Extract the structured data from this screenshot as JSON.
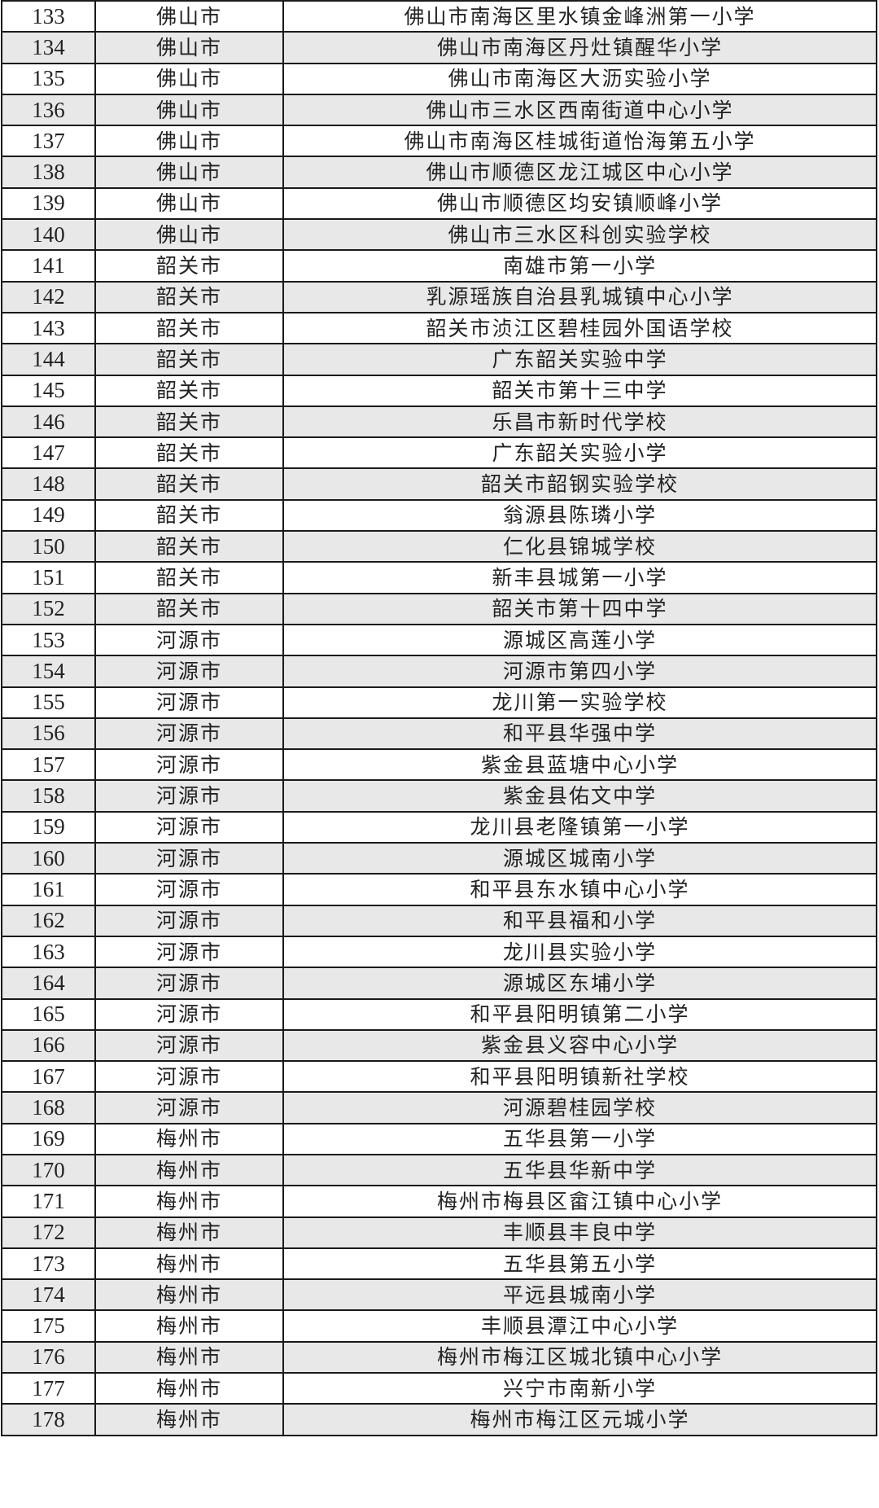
{
  "rows": [
    {
      "no": "133",
      "city": "佛山市",
      "school": "佛山市南海区里水镇金峰洲第一小学"
    },
    {
      "no": "134",
      "city": "佛山市",
      "school": "佛山市南海区丹灶镇醒华小学"
    },
    {
      "no": "135",
      "city": "佛山市",
      "school": "佛山市南海区大沥实验小学"
    },
    {
      "no": "136",
      "city": "佛山市",
      "school": "佛山市三水区西南街道中心小学"
    },
    {
      "no": "137",
      "city": "佛山市",
      "school": "佛山市南海区桂城街道怡海第五小学"
    },
    {
      "no": "138",
      "city": "佛山市",
      "school": "佛山市顺德区龙江城区中心小学"
    },
    {
      "no": "139",
      "city": "佛山市",
      "school": "佛山市顺德区均安镇顺峰小学"
    },
    {
      "no": "140",
      "city": "佛山市",
      "school": "佛山市三水区科创实验学校"
    },
    {
      "no": "141",
      "city": "韶关市",
      "school": "南雄市第一小学"
    },
    {
      "no": "142",
      "city": "韶关市",
      "school": "乳源瑶族自治县乳城镇中心小学"
    },
    {
      "no": "143",
      "city": "韶关市",
      "school": "韶关市浈江区碧桂园外国语学校"
    },
    {
      "no": "144",
      "city": "韶关市",
      "school": "广东韶关实验中学"
    },
    {
      "no": "145",
      "city": "韶关市",
      "school": "韶关市第十三中学"
    },
    {
      "no": "146",
      "city": "韶关市",
      "school": "乐昌市新时代学校"
    },
    {
      "no": "147",
      "city": "韶关市",
      "school": "广东韶关实验小学"
    },
    {
      "no": "148",
      "city": "韶关市",
      "school": "韶关市韶钢实验学校"
    },
    {
      "no": "149",
      "city": "韶关市",
      "school": "翁源县陈璘小学"
    },
    {
      "no": "150",
      "city": "韶关市",
      "school": "仁化县锦城学校"
    },
    {
      "no": "151",
      "city": "韶关市",
      "school": "新丰县城第一小学"
    },
    {
      "no": "152",
      "city": "韶关市",
      "school": "韶关市第十四中学"
    },
    {
      "no": "153",
      "city": "河源市",
      "school": "源城区高莲小学"
    },
    {
      "no": "154",
      "city": "河源市",
      "school": "河源市第四小学"
    },
    {
      "no": "155",
      "city": "河源市",
      "school": "龙川第一实验学校"
    },
    {
      "no": "156",
      "city": "河源市",
      "school": "和平县华强中学"
    },
    {
      "no": "157",
      "city": "河源市",
      "school": "紫金县蓝塘中心小学"
    },
    {
      "no": "158",
      "city": "河源市",
      "school": "紫金县佑文中学"
    },
    {
      "no": "159",
      "city": "河源市",
      "school": "龙川县老隆镇第一小学"
    },
    {
      "no": "160",
      "city": "河源市",
      "school": "源城区城南小学"
    },
    {
      "no": "161",
      "city": "河源市",
      "school": "和平县东水镇中心小学"
    },
    {
      "no": "162",
      "city": "河源市",
      "school": "和平县福和小学"
    },
    {
      "no": "163",
      "city": "河源市",
      "school": "龙川县实验小学"
    },
    {
      "no": "164",
      "city": "河源市",
      "school": "源城区东埔小学"
    },
    {
      "no": "165",
      "city": "河源市",
      "school": "和平县阳明镇第二小学"
    },
    {
      "no": "166",
      "city": "河源市",
      "school": "紫金县义容中心小学"
    },
    {
      "no": "167",
      "city": "河源市",
      "school": "和平县阳明镇新社学校"
    },
    {
      "no": "168",
      "city": "河源市",
      "school": "河源碧桂园学校"
    },
    {
      "no": "169",
      "city": "梅州市",
      "school": "五华县第一小学"
    },
    {
      "no": "170",
      "city": "梅州市",
      "school": "五华县华新中学"
    },
    {
      "no": "171",
      "city": "梅州市",
      "school": "梅州市梅县区畲江镇中心小学"
    },
    {
      "no": "172",
      "city": "梅州市",
      "school": "丰顺县丰良中学"
    },
    {
      "no": "173",
      "city": "梅州市",
      "school": "五华县第五小学"
    },
    {
      "no": "174",
      "city": "梅州市",
      "school": "平远县城南小学"
    },
    {
      "no": "175",
      "city": "梅州市",
      "school": "丰顺县潭江中心小学"
    },
    {
      "no": "176",
      "city": "梅州市",
      "school": "梅州市梅江区城北镇中心小学"
    },
    {
      "no": "177",
      "city": "梅州市",
      "school": "兴宁市南新小学"
    },
    {
      "no": "178",
      "city": "梅州市",
      "school": "梅州市梅江区元城小学"
    }
  ],
  "colors": {
    "shaded_row": "#e8e8e8",
    "border": "#1a1a1a"
  }
}
